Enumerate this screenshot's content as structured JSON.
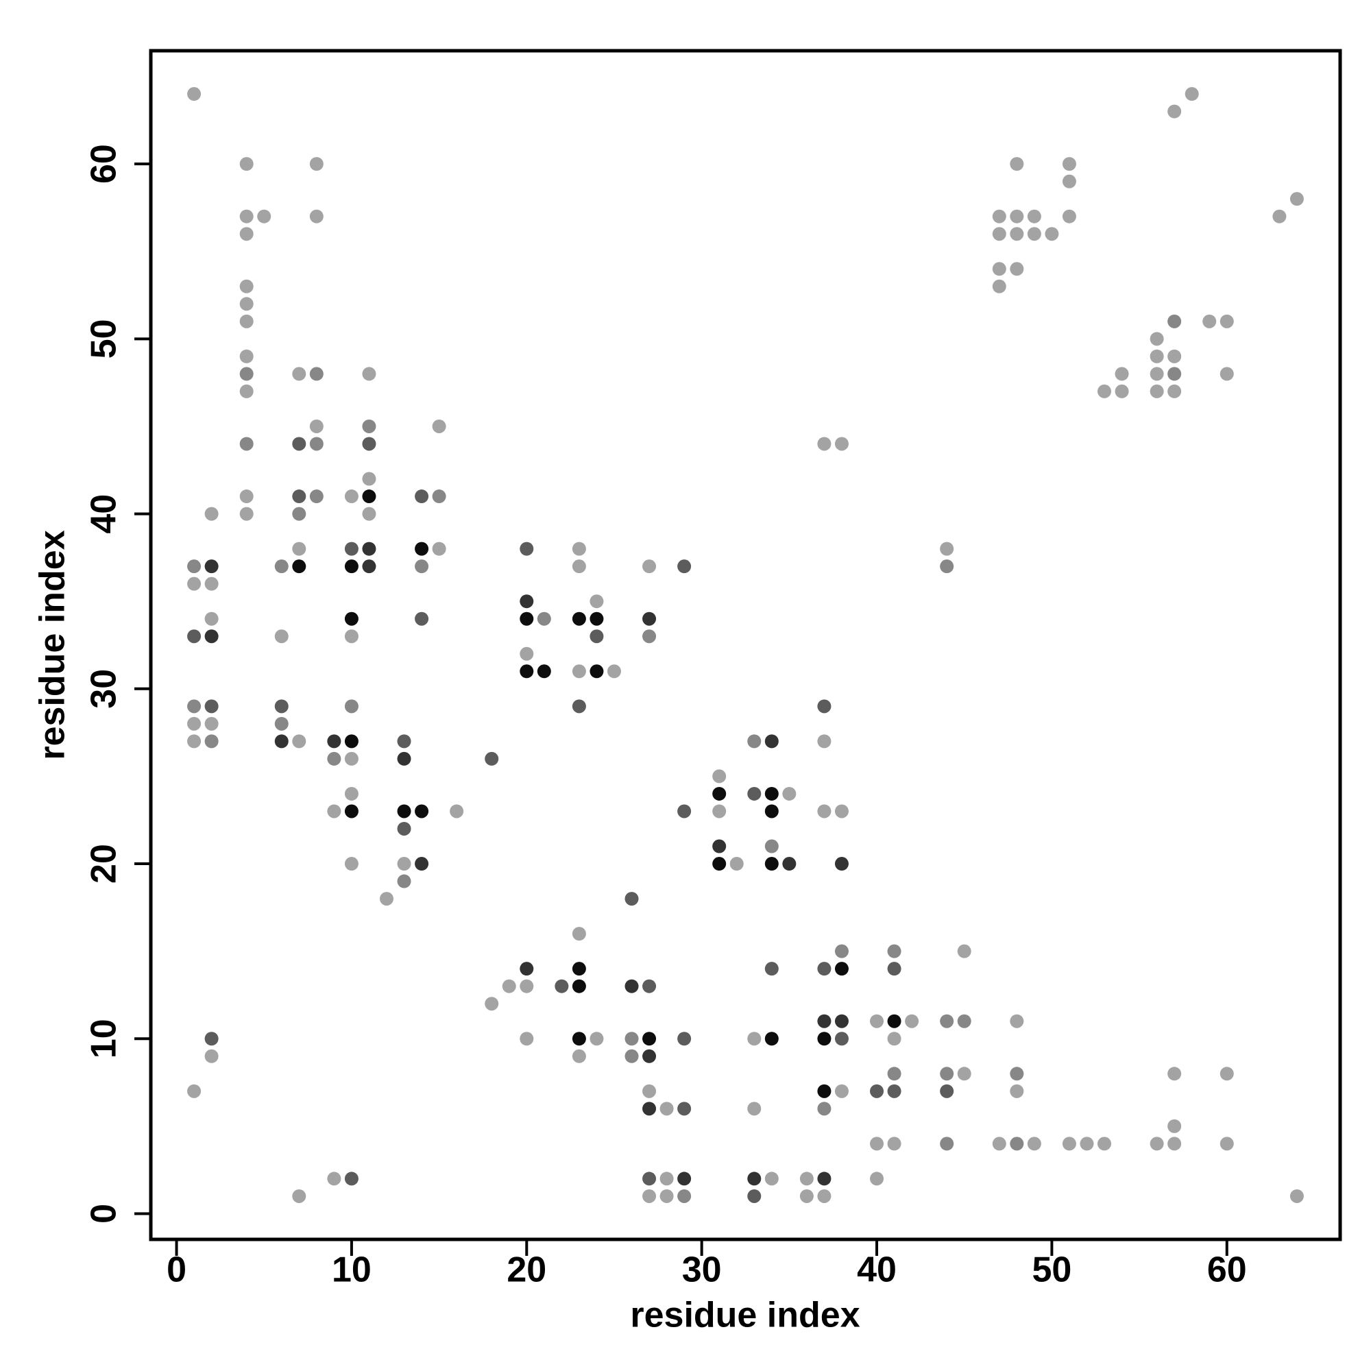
{
  "chart_data": {
    "type": "scatter",
    "xlabel": "residue index",
    "ylabel": "residue index",
    "xlim": [
      -1.47,
      66.47
    ],
    "ylim": [
      -1.47,
      66.47
    ],
    "xticks": [
      0,
      10,
      20,
      30,
      40,
      50,
      60
    ],
    "yticks": [
      0,
      10,
      20,
      30,
      40,
      50,
      60
    ],
    "series": [
      {
        "color": "#a3a3a3",
        "x": [
          1,
          1,
          1,
          1,
          1,
          2,
          2,
          2,
          2,
          2,
          4,
          4,
          4,
          4,
          4,
          4,
          4,
          4,
          4,
          4,
          5,
          6,
          7,
          7,
          7,
          7,
          8,
          8,
          8,
          9,
          9,
          10,
          10,
          10,
          10,
          10,
          11,
          11,
          11,
          12,
          13,
          15,
          15,
          16,
          18,
          19,
          20,
          20,
          20,
          23,
          23,
          23,
          23,
          23,
          24,
          24,
          25,
          27,
          27,
          27,
          28,
          28,
          28,
          31,
          31,
          32,
          33,
          33,
          34,
          35,
          36,
          36,
          37,
          37,
          37,
          37,
          38,
          38,
          38,
          40,
          40,
          40,
          41,
          41,
          42,
          44,
          45,
          45,
          47,
          47,
          47,
          47,
          47,
          48,
          48,
          48,
          48,
          48,
          48,
          49,
          49,
          49,
          50,
          51,
          51,
          51,
          51,
          52,
          53,
          53,
          54,
          54,
          56,
          56,
          56,
          56,
          56,
          57,
          57,
          57,
          57,
          57,
          57,
          58,
          59,
          60,
          60,
          60,
          60,
          63,
          64,
          64
        ],
        "values": [
          64,
          36,
          28,
          27,
          7,
          40,
          36,
          34,
          28,
          9,
          60,
          57,
          56,
          53,
          52,
          51,
          49,
          47,
          41,
          40,
          57,
          33,
          48,
          38,
          27,
          1,
          60,
          57,
          45,
          23,
          2,
          41,
          33,
          26,
          24,
          20,
          48,
          42,
          40,
          18,
          20,
          45,
          38,
          23,
          12,
          13,
          32,
          13,
          10,
          38,
          37,
          31,
          16,
          9,
          35,
          10,
          31,
          37,
          7,
          1,
          6,
          2,
          1,
          25,
          23,
          20,
          10,
          6,
          2,
          24,
          2,
          1,
          44,
          27,
          23,
          1,
          44,
          23,
          7,
          11,
          4,
          2,
          10,
          4,
          11,
          38,
          15,
          8,
          57,
          56,
          54,
          53,
          4,
          60,
          57,
          56,
          54,
          11,
          7,
          57,
          56,
          4,
          56,
          60,
          59,
          57,
          4,
          4,
          47,
          4,
          48,
          47,
          50,
          49,
          48,
          47,
          4,
          63,
          49,
          47,
          8,
          5,
          4,
          64,
          51,
          51,
          48,
          8,
          4,
          57,
          58,
          1
        ]
      },
      {
        "color": "#878787",
        "x": [
          1,
          1,
          2,
          4,
          4,
          6,
          6,
          7,
          8,
          8,
          8,
          9,
          10,
          11,
          13,
          14,
          15,
          21,
          26,
          26,
          27,
          29,
          33,
          34,
          37,
          38,
          41,
          41,
          44,
          44,
          44,
          44,
          45,
          48,
          48,
          57,
          57
        ],
        "values": [
          37,
          29,
          27,
          48,
          44,
          37,
          28,
          40,
          48,
          44,
          41,
          26,
          29,
          45,
          19,
          37,
          41,
          34,
          10,
          9,
          33,
          1,
          27,
          21,
          6,
          15,
          15,
          8,
          37,
          11,
          8,
          4,
          11,
          8,
          4,
          51,
          48
        ]
      },
      {
        "color": "#5c5c5c",
        "x": [
          1,
          2,
          2,
          6,
          7,
          7,
          10,
          10,
          11,
          13,
          13,
          14,
          14,
          18,
          20,
          22,
          23,
          24,
          26,
          27,
          27,
          29,
          29,
          29,
          29,
          33,
          33,
          34,
          37,
          37,
          38,
          40,
          41,
          41,
          44
        ],
        "values": [
          33,
          29,
          10,
          29,
          44,
          41,
          38,
          2,
          44,
          27,
          22,
          41,
          34,
          26,
          38,
          13,
          29,
          33,
          18,
          13,
          2,
          37,
          23,
          10,
          6,
          24,
          1,
          14,
          29,
          14,
          10,
          7,
          14,
          7,
          7
        ]
      },
      {
        "color": "#333333",
        "x": [
          2,
          2,
          6,
          9,
          11,
          11,
          13,
          14,
          20,
          20,
          26,
          27,
          27,
          27,
          29,
          31,
          33,
          34,
          35,
          37,
          37,
          38,
          38
        ],
        "values": [
          37,
          33,
          27,
          27,
          38,
          37,
          26,
          20,
          35,
          14,
          13,
          34,
          9,
          6,
          2,
          21,
          2,
          27,
          20,
          11,
          2,
          20,
          11
        ]
      },
      {
        "color": "#0d0d0d",
        "x": [
          7,
          10,
          10,
          10,
          10,
          11,
          13,
          14,
          14,
          20,
          20,
          21,
          23,
          23,
          23,
          23,
          24,
          24,
          27,
          31,
          31,
          34,
          34,
          34,
          34,
          37,
          37,
          38,
          41
        ],
        "values": [
          37,
          37,
          34,
          27,
          23,
          41,
          23,
          38,
          23,
          34,
          31,
          31,
          34,
          14,
          13,
          10,
          34,
          31,
          10,
          24,
          20,
          24,
          23,
          20,
          10,
          10,
          7,
          14,
          11
        ]
      }
    ]
  }
}
